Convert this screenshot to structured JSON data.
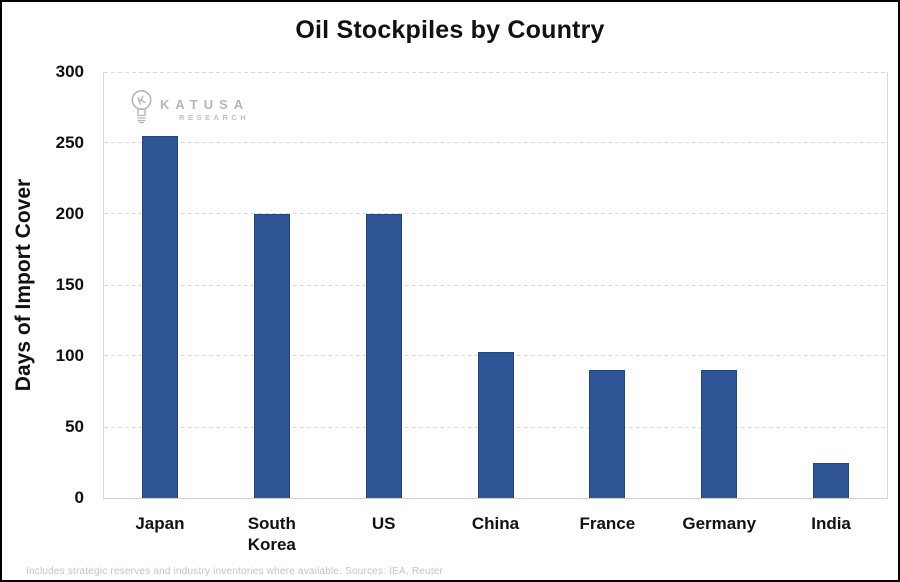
{
  "header": {
    "title": "Oil Stockpiles by Country"
  },
  "logo": {
    "name": "KATUSA",
    "subtitle": "RESEARCH",
    "icon": "lightbulb-k-icon",
    "color": "#b9b6b2"
  },
  "footer": {
    "note": "Includes strategic reserves and industry inventories where available. Sources: IEA, Reuter"
  },
  "chart_data": {
    "type": "bar",
    "title": "Oil Stockpiles by Country",
    "categories": [
      "Japan",
      "South Korea",
      "US",
      "China",
      "France",
      "Germany",
      "India"
    ],
    "values": [
      255,
      200,
      200,
      103,
      90,
      90,
      25
    ],
    "xlabel": "",
    "ylabel": "Days of Import Cover",
    "ylim": [
      0,
      300
    ],
    "yticks": [
      0,
      50,
      100,
      150,
      200,
      250,
      300
    ],
    "bar_color": "#2F5597",
    "gridline_color": "#D9D9D9",
    "grid": "horizontal-dashed",
    "legend_position": "none"
  }
}
